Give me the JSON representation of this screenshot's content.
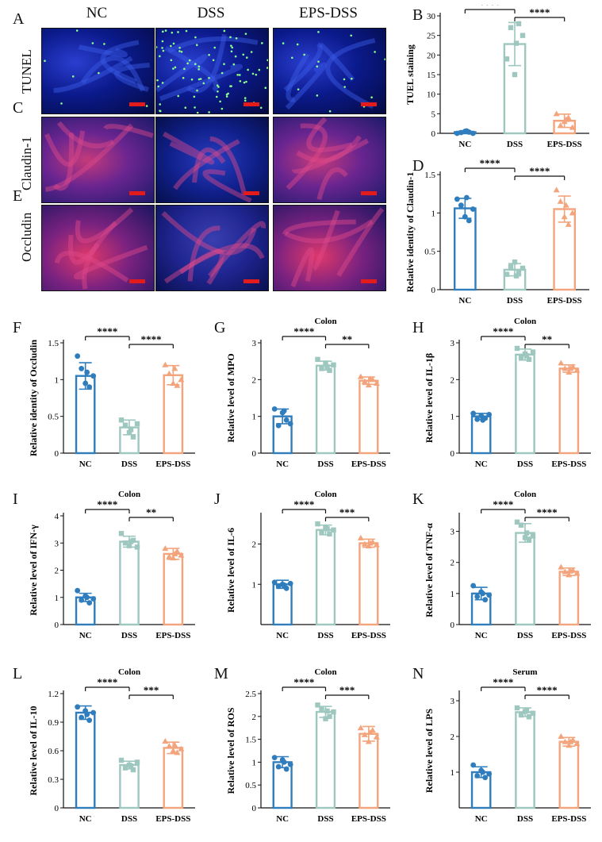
{
  "figure": {
    "micro_columns": [
      "NC",
      "DSS",
      "EPS-DSS"
    ],
    "micro_rows": [
      {
        "letter": "A",
        "label": "TUNEL",
        "style": "tunel"
      },
      {
        "letter": "C",
        "label": "Claudin-1",
        "style": "claudin"
      },
      {
        "letter": "E",
        "label": "Occludin",
        "style": "occludin"
      }
    ]
  },
  "colors": {
    "nc": "#2f7dbd",
    "dss": "#9dc7bf",
    "eps": "#f4a47c",
    "scalebar": "#e31b1b"
  },
  "chart_data": [
    {
      "letter": "B",
      "type": "bar",
      "title": "",
      "ylabel": "TUEL staining",
      "categories": [
        "NC",
        "DSS",
        "EPS-DSS"
      ],
      "values": [
        0.3,
        22.8,
        3.2
      ],
      "errors": [
        0.3,
        5.5,
        1.7
      ],
      "ylim": [
        0,
        30
      ],
      "yticks": [
        0,
        5,
        10,
        15,
        20,
        25,
        30
      ],
      "points": [
        [
          0,
          0.2,
          0.5,
          0.3,
          0,
          0.6
        ],
        [
          19,
          27,
          15,
          28,
          25,
          23
        ],
        [
          5,
          2,
          3,
          4,
          1.5,
          3.5
        ]
      ],
      "sig": [
        {
          "from": 0,
          "to": 1,
          "text": "****"
        },
        {
          "from": 1,
          "to": 2,
          "text": "****"
        }
      ]
    },
    {
      "letter": "D",
      "type": "bar",
      "title": "",
      "ylabel": "Relative identity of Claudin-1",
      "categories": [
        "NC",
        "DSS",
        "EPS-DSS"
      ],
      "values": [
        1.06,
        0.26,
        1.05
      ],
      "errors": [
        0.13,
        0.08,
        0.17
      ],
      "ylim": [
        0,
        1.5
      ],
      "yticks": [
        0.0,
        0.5,
        1.0,
        1.5
      ],
      "points": [
        [
          1.18,
          1.1,
          0.95,
          0.9,
          1.05,
          1.2
        ],
        [
          0.2,
          0.3,
          0.36,
          0.22,
          0.28,
          0.18
        ],
        [
          1.3,
          1.15,
          0.95,
          0.85,
          1.0,
          1.1
        ]
      ],
      "sig": [
        {
          "from": 0,
          "to": 1,
          "text": "****"
        },
        {
          "from": 1,
          "to": 2,
          "text": "****"
        }
      ]
    },
    {
      "letter": "F",
      "type": "bar",
      "title": "",
      "ylabel": "Relative identity of Occludin",
      "categories": [
        "NC",
        "DSS",
        "EPS-DSS"
      ],
      "values": [
        1.05,
        0.35,
        1.06
      ],
      "errors": [
        0.18,
        0.1,
        0.13
      ],
      "ylim": [
        0,
        1.5
      ],
      "yticks": [
        0.0,
        0.5,
        1.0,
        1.5
      ],
      "points": [
        [
          1.32,
          1.15,
          0.95,
          0.9,
          1.05,
          1.1
        ],
        [
          0.45,
          0.38,
          0.28,
          0.22,
          0.4,
          0.32
        ],
        [
          1.2,
          1.08,
          0.95,
          0.92,
          1.0,
          1.15
        ]
      ],
      "sig": [
        {
          "from": 0,
          "to": 1,
          "text": "****"
        },
        {
          "from": 1,
          "to": 2,
          "text": "****"
        }
      ]
    },
    {
      "letter": "G",
      "type": "bar",
      "title": "Colon",
      "ylabel": "Relative level of MPO",
      "categories": [
        "NC",
        "DSS",
        "EPS-DSS"
      ],
      "values": [
        1.0,
        2.38,
        1.97
      ],
      "errors": [
        0.2,
        0.12,
        0.1
      ],
      "ylim": [
        0,
        3
      ],
      "yticks": [
        0,
        1,
        2,
        3
      ],
      "points": [
        [
          1.2,
          0.75,
          1.1,
          0.9,
          0.8,
          1.15
        ],
        [
          2.55,
          2.3,
          2.45,
          2.25,
          2.4,
          2.35
        ],
        [
          2.08,
          1.95,
          1.85,
          2.0,
          1.9,
          2.02
        ]
      ],
      "sig": [
        {
          "from": 0,
          "to": 1,
          "text": "****"
        },
        {
          "from": 1,
          "to": 2,
          "text": "**"
        }
      ]
    },
    {
      "letter": "H",
      "type": "bar",
      "title": "Colon",
      "ylabel": "Relative level of IL-1β",
      "categories": [
        "NC",
        "DSS",
        "EPS-DSS"
      ],
      "values": [
        1.0,
        2.68,
        2.3
      ],
      "errors": [
        0.08,
        0.15,
        0.1
      ],
      "ylim": [
        0,
        3
      ],
      "yticks": [
        0,
        1,
        2,
        3
      ],
      "points": [
        [
          1.08,
          0.92,
          1.02,
          0.95,
          1.05,
          0.9
        ],
        [
          2.85,
          2.6,
          2.7,
          2.55,
          2.75,
          2.65
        ],
        [
          2.45,
          2.3,
          2.2,
          2.35,
          2.25,
          2.3
        ]
      ],
      "sig": [
        {
          "from": 0,
          "to": 1,
          "text": "****"
        },
        {
          "from": 1,
          "to": 2,
          "text": "**"
        }
      ]
    },
    {
      "letter": "I",
      "type": "bar",
      "title": "Colon",
      "ylabel": "Relative level of IFN-γ",
      "categories": [
        "NC",
        "DSS",
        "EPS-DSS"
      ],
      "values": [
        1.0,
        3.05,
        2.6
      ],
      "errors": [
        0.15,
        0.2,
        0.2
      ],
      "ylim": [
        0,
        4
      ],
      "yticks": [
        0,
        1,
        2,
        3,
        4
      ],
      "points": [
        [
          1.25,
          0.9,
          1.05,
          0.8,
          0.95,
          1.0
        ],
        [
          3.35,
          3.0,
          2.9,
          3.1,
          2.85,
          3.05
        ],
        [
          2.8,
          2.5,
          2.45,
          2.7,
          2.55,
          2.6
        ]
      ],
      "sig": [
        {
          "from": 0,
          "to": 1,
          "text": "****"
        },
        {
          "from": 1,
          "to": 2,
          "text": "**"
        }
      ]
    },
    {
      "letter": "J",
      "type": "bar",
      "title": "Colon",
      "ylabel": "Relative level of IL-6",
      "categories": [
        "NC",
        "DSS",
        "EPS-DSS"
      ],
      "values": [
        1.0,
        2.35,
        2.02
      ],
      "errors": [
        0.1,
        0.12,
        0.1
      ],
      "ylim": [
        0,
        2.7
      ],
      "yticks": [
        1,
        2
      ],
      "points": [
        [
          1.05,
          0.95,
          1.0,
          0.9,
          1.02,
          0.98
        ],
        [
          2.5,
          2.3,
          2.4,
          2.25,
          2.35,
          2.38
        ],
        [
          2.15,
          2.0,
          1.95,
          2.05,
          1.98,
          2.02
        ]
      ],
      "sig": [
        {
          "from": 0,
          "to": 1,
          "text": "****"
        },
        {
          "from": 1,
          "to": 2,
          "text": "***"
        }
      ]
    },
    {
      "letter": "K",
      "type": "bar",
      "title": "Colon",
      "ylabel": "Relative level of TNF-α",
      "categories": [
        "NC",
        "DSS",
        "EPS-DSS"
      ],
      "values": [
        1.0,
        2.95,
        1.7
      ],
      "errors": [
        0.2,
        0.3,
        0.12
      ],
      "ylim": [
        0,
        3.5
      ],
      "yticks": [
        0,
        1,
        2,
        3
      ],
      "points": [
        [
          1.25,
          0.9,
          1.05,
          0.8,
          0.95,
          1.0
        ],
        [
          3.3,
          3.2,
          2.8,
          2.75,
          2.85,
          2.95
        ],
        [
          1.85,
          1.7,
          1.6,
          1.75,
          1.65,
          1.72
        ]
      ],
      "sig": [
        {
          "from": 0,
          "to": 1,
          "text": "****"
        },
        {
          "from": 1,
          "to": 2,
          "text": "****"
        }
      ]
    },
    {
      "letter": "L",
      "type": "bar",
      "title": "Colon",
      "ylabel": "Relative level of IL-10",
      "categories": [
        "NC",
        "DSS",
        "EPS-DSS"
      ],
      "values": [
        1.0,
        0.45,
        0.63
      ],
      "errors": [
        0.07,
        0.04,
        0.06
      ],
      "ylim": [
        0,
        1.2
      ],
      "yticks": [
        0.0,
        0.3,
        0.6,
        0.9,
        1.2
      ],
      "points": [
        [
          1.06,
          0.95,
          1.02,
          0.92,
          1.0,
          0.98
        ],
        [
          0.5,
          0.42,
          0.45,
          0.4,
          0.48,
          0.44
        ],
        [
          0.7,
          0.65,
          0.6,
          0.58,
          0.62,
          0.66
        ]
      ],
      "sig": [
        {
          "from": 0,
          "to": 1,
          "text": "****"
        },
        {
          "from": 1,
          "to": 2,
          "text": "***"
        }
      ]
    },
    {
      "letter": "M",
      "type": "bar",
      "title": "Colon",
      "ylabel": "Relative level of ROS",
      "categories": [
        "NC",
        "DSS",
        "EPS-DSS"
      ],
      "values": [
        1.0,
        2.1,
        1.62
      ],
      "errors": [
        0.12,
        0.12,
        0.16
      ],
      "ylim": [
        0,
        2.5
      ],
      "yticks": [
        0.0,
        0.5,
        1.0,
        1.5,
        2.0,
        2.5
      ],
      "points": [
        [
          1.1,
          0.9,
          1.05,
          0.85,
          0.95,
          1.0
        ],
        [
          2.25,
          2.15,
          1.95,
          2.0,
          2.1,
          2.12
        ],
        [
          1.75,
          1.6,
          1.45,
          1.7,
          1.55,
          1.65
        ]
      ],
      "sig": [
        {
          "from": 0,
          "to": 1,
          "text": "****"
        },
        {
          "from": 1,
          "to": 2,
          "text": "***"
        }
      ]
    },
    {
      "letter": "N",
      "type": "bar",
      "title": "Serum",
      "ylabel": "Relative level of LPS",
      "categories": [
        "NC",
        "DSS",
        "EPS-DSS"
      ],
      "values": [
        1.0,
        2.68,
        1.85
      ],
      "errors": [
        0.15,
        0.12,
        0.12
      ],
      "ylim": [
        0,
        3.2
      ],
      "yticks": [
        1,
        2,
        3
      ],
      "points": [
        [
          1.2,
          0.9,
          1.05,
          0.85,
          0.95,
          1.0
        ],
        [
          2.8,
          2.6,
          2.7,
          2.55,
          2.65,
          2.72
        ],
        [
          2.0,
          1.85,
          1.75,
          1.9,
          1.8,
          1.85
        ]
      ],
      "sig": [
        {
          "from": 0,
          "to": 1,
          "text": "****"
        },
        {
          "from": 1,
          "to": 2,
          "text": "****"
        }
      ]
    }
  ]
}
